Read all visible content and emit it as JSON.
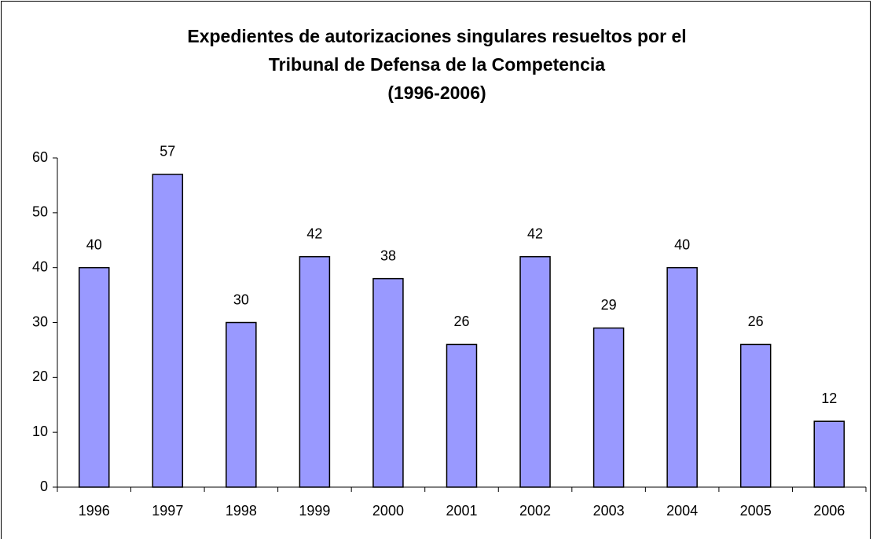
{
  "chart_data": {
    "type": "bar",
    "title": [
      "Expedientes de autorizaciones singulares resueltos por el",
      "Tribunal de Defensa de la Competencia",
      "(1996-2006)"
    ],
    "categories": [
      "1996",
      "1997",
      "1998",
      "1999",
      "2000",
      "2001",
      "2002",
      "2003",
      "2004",
      "2005",
      "2006"
    ],
    "values": [
      40,
      57,
      30,
      42,
      38,
      26,
      42,
      29,
      40,
      26,
      12
    ],
    "color": "#9999ff",
    "ylim": [
      0,
      60
    ],
    "yticks": [
      0,
      10,
      20,
      30,
      40,
      50,
      60
    ],
    "grid": false
  }
}
